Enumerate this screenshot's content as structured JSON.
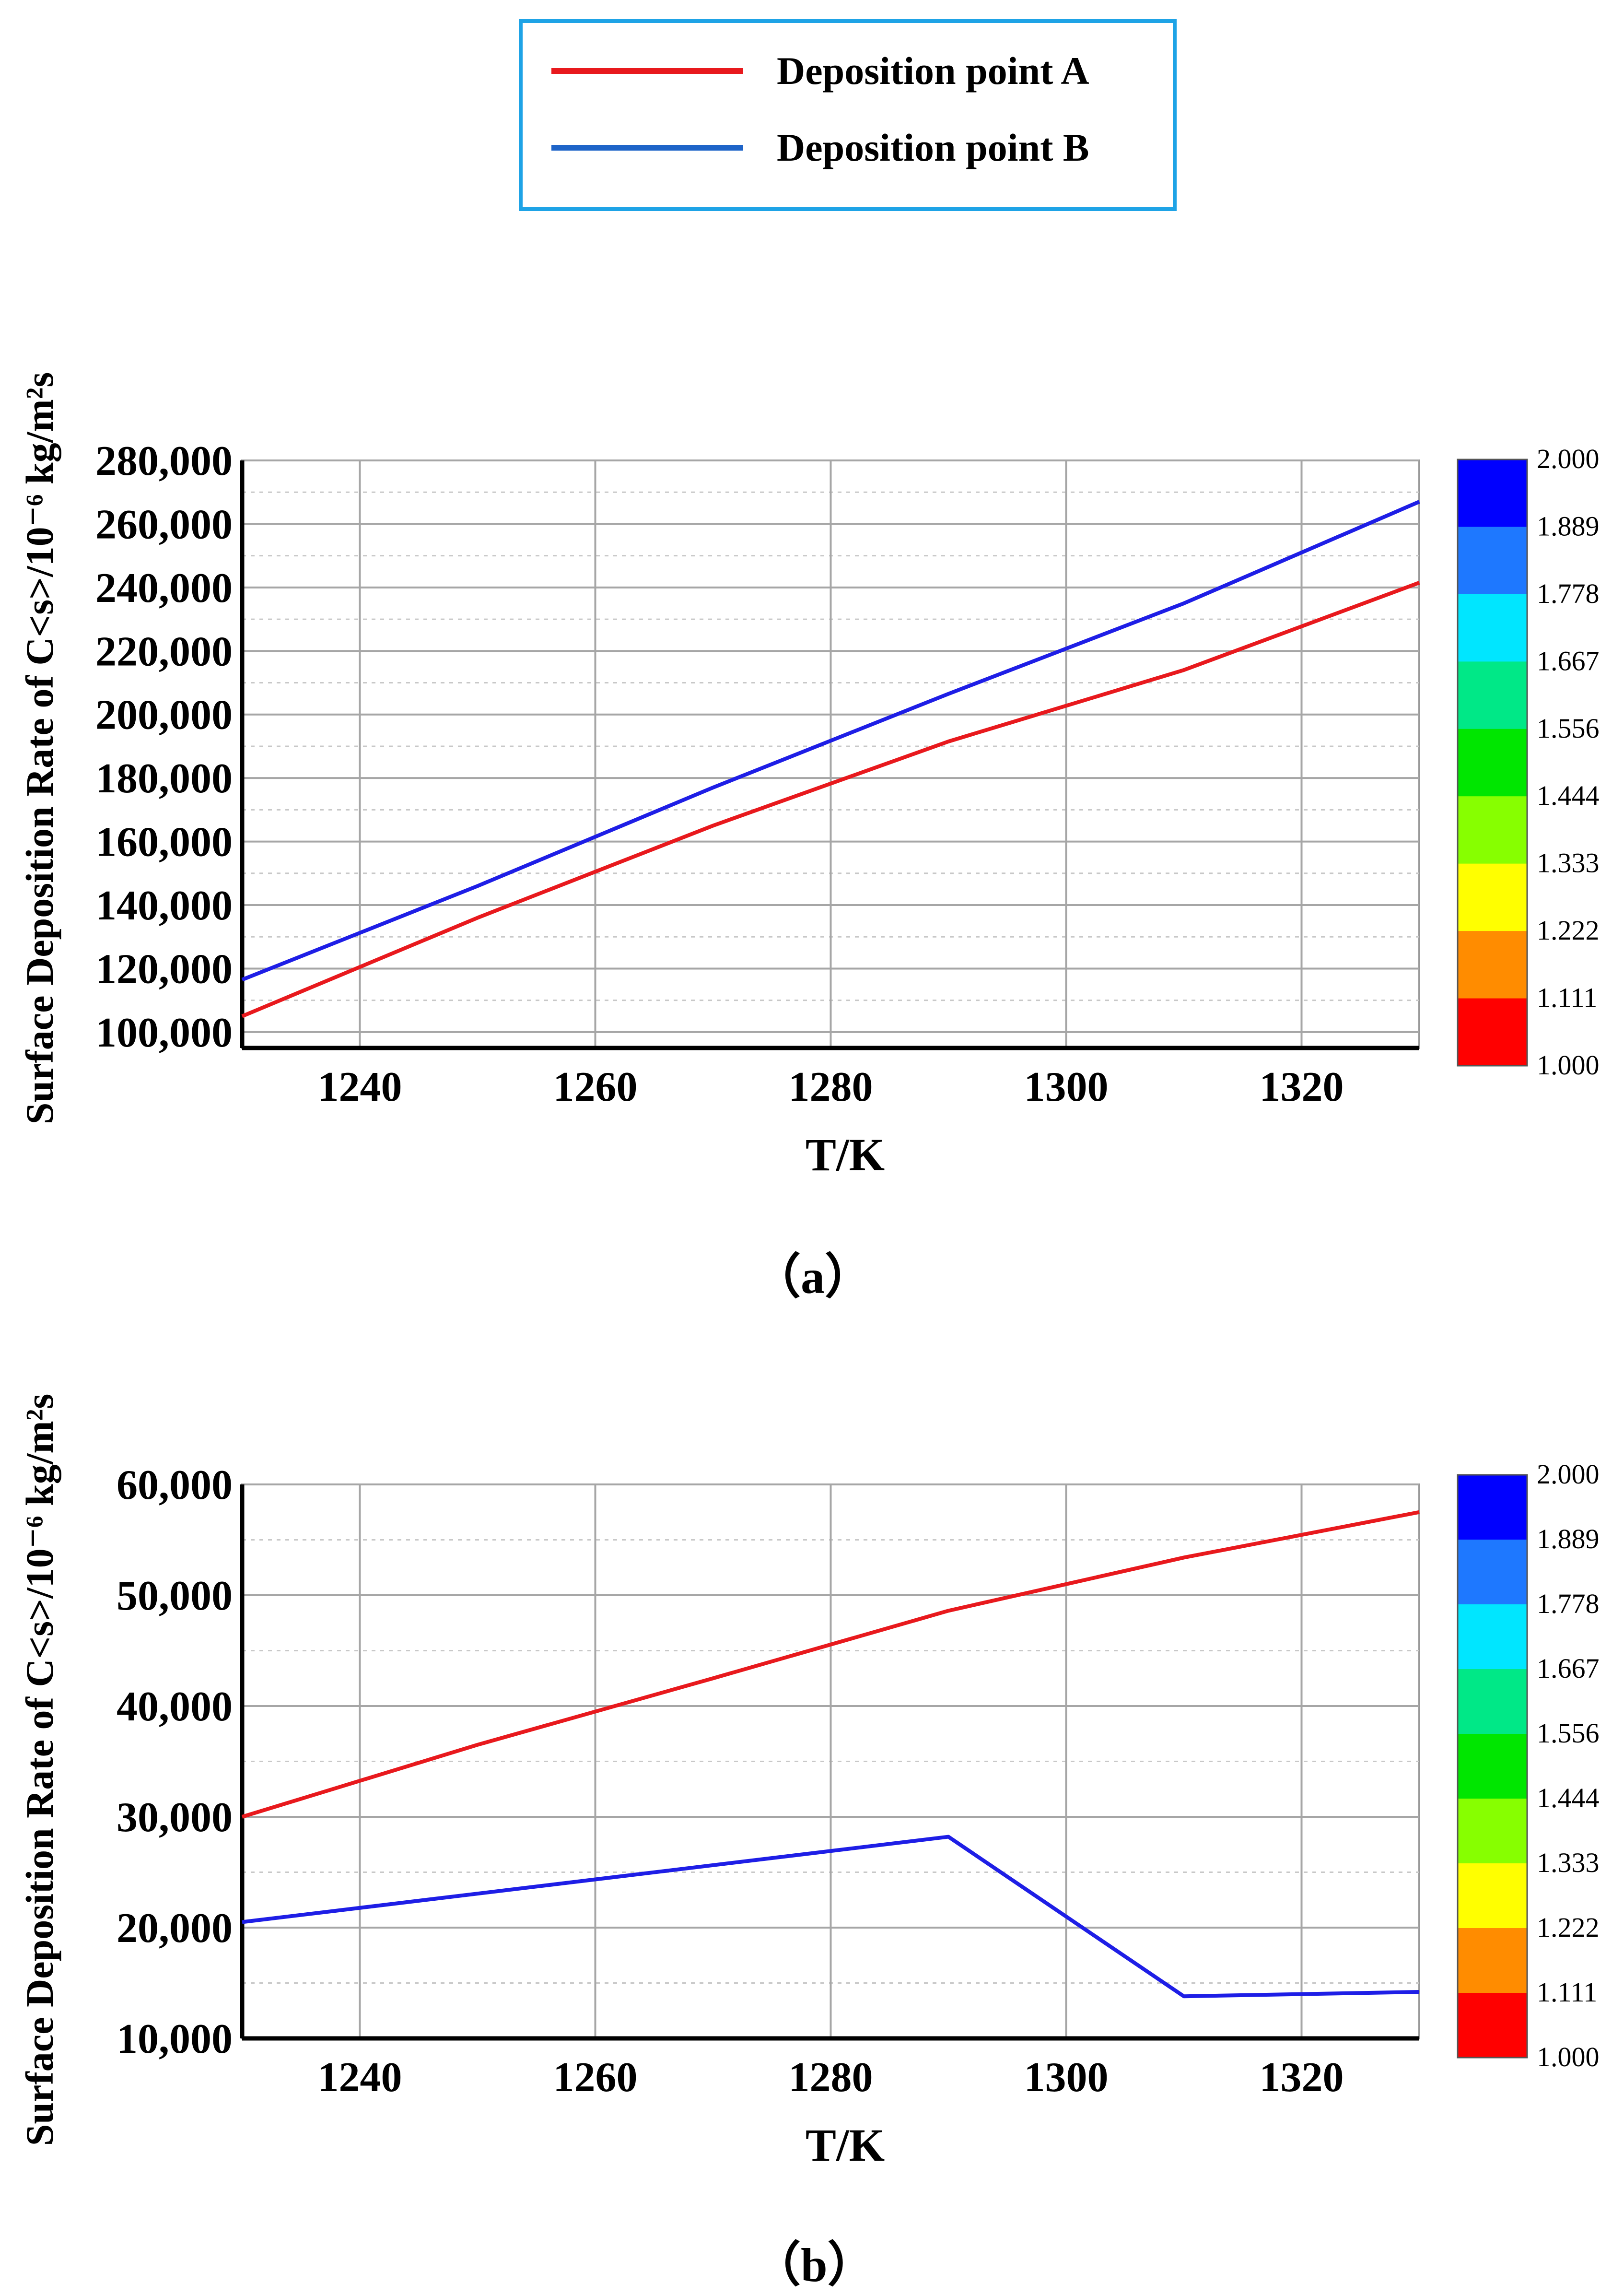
{
  "legend": {
    "entries": [
      {
        "label": "Deposition point A",
        "color": "#e8191d"
      },
      {
        "label": "Deposition point B",
        "color": "#1e64c8"
      }
    ],
    "border_color": "#1ea3e6"
  },
  "colorbar": {
    "labels": [
      "2.000",
      "1.889",
      "1.778",
      "1.667",
      "1.556",
      "1.444",
      "1.333",
      "1.222",
      "1.111",
      "1.000"
    ],
    "colors": [
      "#0000ff",
      "#1e78ff",
      "#00e6ff",
      "#00e887",
      "#00e600",
      "#87ff00",
      "#ffff00",
      "#ff8c00",
      "#ff0000"
    ]
  },
  "chart_data": [
    {
      "type": "line",
      "caption": "（a）",
      "xlabel": "T/K",
      "ylabel": "Surface Deposition Rate of C<s>/10⁻⁶ kg/m²s",
      "xlim": [
        1230,
        1330
      ],
      "ylim": [
        95000,
        280000
      ],
      "xticks": [
        1240,
        1260,
        1280,
        1300,
        1320
      ],
      "yticks": [
        100000,
        120000,
        140000,
        160000,
        180000,
        200000,
        220000,
        240000,
        260000,
        280000
      ],
      "ytick_labels": [
        "100,000",
        "120,000",
        "140,000",
        "160,000",
        "180,000",
        "200,000",
        "220,000",
        "240,000",
        "260,000",
        "280,000"
      ],
      "grid": true,
      "series": [
        {
          "name": "Deposition point A",
          "color": "#e8191d",
          "x": [
            1230,
            1250,
            1270,
            1290,
            1310,
            1330
          ],
          "y": [
            105000,
            136000,
            165000,
            191500,
            214000,
            241500
          ]
        },
        {
          "name": "Deposition point B",
          "color": "#1e1ee6",
          "x": [
            1230,
            1250,
            1270,
            1290,
            1310,
            1330
          ],
          "y": [
            116500,
            146000,
            177000,
            206500,
            235000,
            267000
          ]
        }
      ]
    },
    {
      "type": "line",
      "caption": "（b）",
      "xlabel": "T/K",
      "ylabel": "Surface Deposition Rate of C<s>/10⁻⁶ kg/m²s",
      "xlim": [
        1230,
        1330
      ],
      "ylim": [
        10000,
        60000
      ],
      "xticks": [
        1240,
        1260,
        1280,
        1300,
        1320
      ],
      "yticks": [
        10000,
        20000,
        30000,
        40000,
        50000,
        60000
      ],
      "ytick_labels": [
        "10,000",
        "20,000",
        "30,000",
        "40,000",
        "50,000",
        "60,000"
      ],
      "grid": true,
      "series": [
        {
          "name": "Deposition point A",
          "color": "#e8191d",
          "x": [
            1230,
            1250,
            1270,
            1290,
            1310,
            1330
          ],
          "y": [
            30000,
            36500,
            42500,
            48600,
            53400,
            57500
          ]
        },
        {
          "name": "Deposition point B",
          "color": "#1e1ee6",
          "x": [
            1230,
            1290,
            1310,
            1330
          ],
          "y": [
            20500,
            28200,
            13800,
            14200
          ]
        }
      ]
    }
  ]
}
